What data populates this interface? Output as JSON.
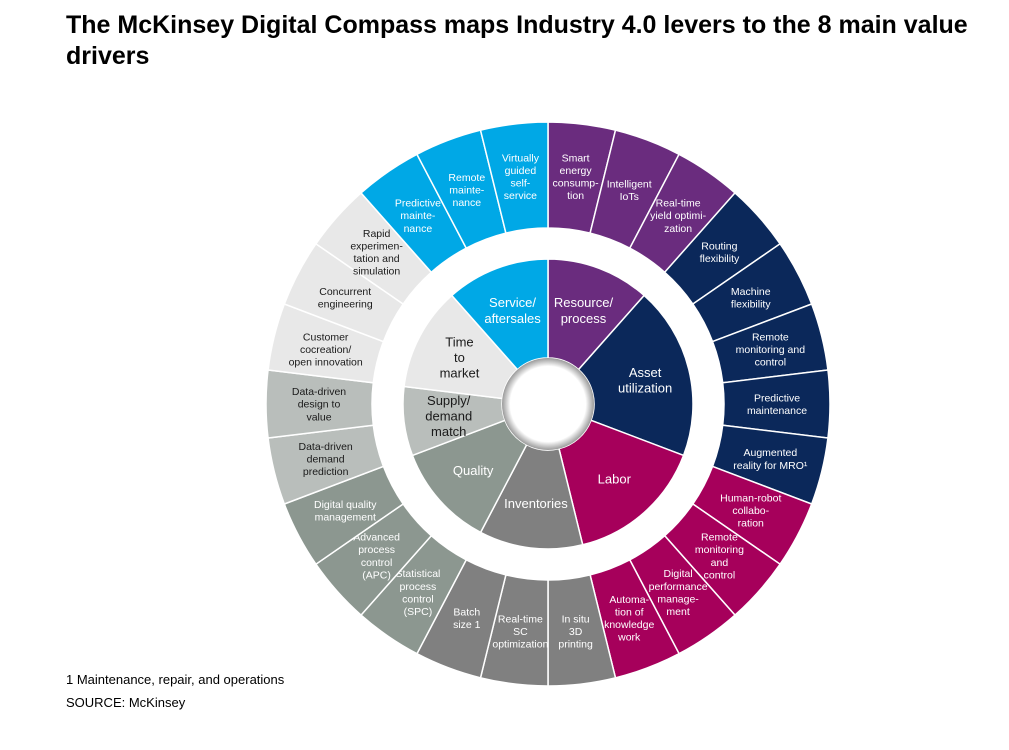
{
  "title": "The McKinsey Digital Compass maps Industry 4.0 levers to the 8 main value drivers",
  "footnote": "1 Maintenance, repair, and operations",
  "source": "SOURCE: McKinsey",
  "drivers": [
    {
      "lines": [
        "Resource/",
        "process"
      ],
      "color": "#6a2c7e",
      "text_color": "#ffffff"
    },
    {
      "lines": [
        "Asset",
        "utilization"
      ],
      "color": "#0b285a",
      "text_color": "#ffffff"
    },
    {
      "lines": [
        "Labor"
      ],
      "color": "#a6005b",
      "text_color": "#ffffff"
    },
    {
      "lines": [
        "Inventories"
      ],
      "color": "#808080",
      "text_color": "#ffffff"
    },
    {
      "lines": [
        "Quality"
      ],
      "color": "#8c9790",
      "text_color": "#ffffff"
    },
    {
      "lines": [
        "Supply/",
        "demand",
        "match"
      ],
      "color": "#b9bebb",
      "text_color": "#1a1a1a"
    },
    {
      "lines": [
        "Time",
        "to",
        "market"
      ],
      "color": "#e8e8e8",
      "text_color": "#1a1a1a"
    },
    {
      "lines": [
        "Service/",
        "aftersales"
      ],
      "color": "#00a8e6",
      "text_color": "#ffffff"
    }
  ],
  "levers": [
    {
      "driver": 0,
      "lines": [
        "Smart",
        "energy",
        "consump-",
        "tion"
      ]
    },
    {
      "driver": 0,
      "lines": [
        "Intelligent",
        "IoTs"
      ]
    },
    {
      "driver": 0,
      "lines": [
        "Real-time",
        "yield optimi-",
        "zation"
      ]
    },
    {
      "driver": 1,
      "lines": [
        "Routing",
        "flexibility"
      ]
    },
    {
      "driver": 1,
      "lines": [
        "Machine",
        "flexibility"
      ]
    },
    {
      "driver": 1,
      "lines": [
        "Remote",
        "monitoring and",
        "control"
      ]
    },
    {
      "driver": 1,
      "lines": [
        "Predictive",
        "maintenance"
      ]
    },
    {
      "driver": 1,
      "lines": [
        "Augmented",
        "reality for MRO¹"
      ]
    },
    {
      "driver": 2,
      "lines": [
        "Human-robot",
        "collabo-",
        "ration"
      ]
    },
    {
      "driver": 2,
      "lines": [
        "Remote",
        "monitoring",
        "and",
        "control"
      ]
    },
    {
      "driver": 2,
      "lines": [
        "Digital",
        "performance",
        "manage-",
        "ment"
      ]
    },
    {
      "driver": 2,
      "lines": [
        "Automa-",
        "tion of",
        "knowledge",
        "work"
      ]
    },
    {
      "driver": 3,
      "lines": [
        "In situ",
        "3D",
        "printing"
      ]
    },
    {
      "driver": 3,
      "lines": [
        "Real-time",
        "SC",
        "optimization"
      ]
    },
    {
      "driver": 3,
      "lines": [
        "Batch",
        "size 1"
      ]
    },
    {
      "driver": 4,
      "lines": [
        "Statistical",
        "process",
        "control",
        "(SPC)"
      ]
    },
    {
      "driver": 4,
      "lines": [
        "Advanced",
        "process",
        "control",
        "(APC)"
      ]
    },
    {
      "driver": 4,
      "lines": [
        "Digital quality",
        "management"
      ]
    },
    {
      "driver": 5,
      "lines": [
        "Data-driven",
        "demand",
        "prediction"
      ]
    },
    {
      "driver": 5,
      "lines": [
        "Data-driven",
        "design to",
        "value"
      ]
    },
    {
      "driver": 6,
      "lines": [
        "Customer",
        "cocreation/",
        "open innovation"
      ]
    },
    {
      "driver": 6,
      "lines": [
        "Concurrent",
        "engineering"
      ]
    },
    {
      "driver": 6,
      "lines": [
        "Rapid",
        "experimen-",
        "tation and",
        "simulation"
      ]
    },
    {
      "driver": 7,
      "lines": [
        "Predictive",
        "mainte-",
        "nance"
      ]
    },
    {
      "driver": 7,
      "lines": [
        "Remote",
        "mainte-",
        "nance"
      ]
    },
    {
      "driver": 7,
      "lines": [
        "Virtually",
        "guided",
        "self-",
        "service"
      ]
    }
  ]
}
